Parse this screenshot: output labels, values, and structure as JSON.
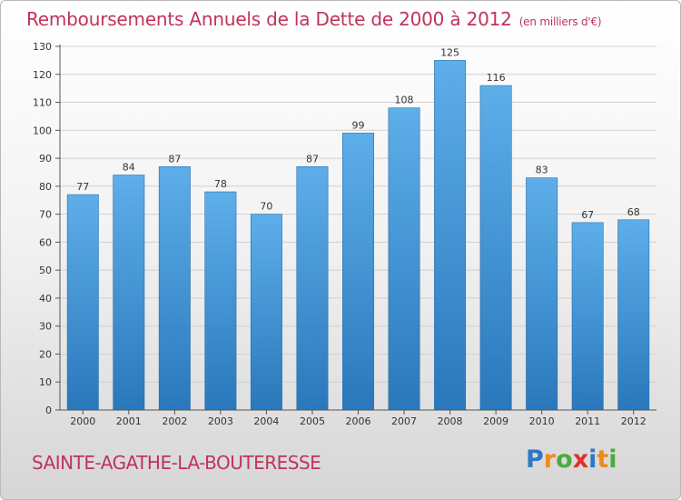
{
  "title": "Remboursements Annuels de la Dette de 2000 à 2012",
  "unit": "(en milliers d'€)",
  "commune": "SAINTE-AGATHE-LA-BOUTERESSE",
  "logo": {
    "text": "Proxiti",
    "letters": [
      {
        "ch": "P",
        "color": "#2f78c4"
      },
      {
        "ch": "r",
        "color": "#f08a1c"
      },
      {
        "ch": "o",
        "color": "#4bab3c"
      },
      {
        "ch": "x",
        "color": "#e0302e"
      },
      {
        "ch": "i",
        "color": "#2f78c4"
      },
      {
        "ch": "t",
        "color": "#f08a1c"
      },
      {
        "ch": "i",
        "color": "#4bab3c"
      }
    ]
  },
  "colors": {
    "title": "#c0345a",
    "bar_top": "#5eaeea",
    "bar_bottom": "#2a78bb",
    "grid": "#d0d0d0",
    "axis": "#555555"
  },
  "chart_data": {
    "type": "bar",
    "categories": [
      "2000",
      "2001",
      "2002",
      "2003",
      "2004",
      "2005",
      "2006",
      "2007",
      "2008",
      "2009",
      "2010",
      "2011",
      "2012"
    ],
    "values": [
      77,
      84,
      87,
      78,
      70,
      87,
      99,
      108,
      125,
      116,
      83,
      67,
      68
    ],
    "ylim": [
      0,
      130
    ],
    "yticks": [
      0,
      10,
      20,
      30,
      40,
      50,
      60,
      70,
      80,
      90,
      100,
      110,
      120,
      130
    ],
    "grid": true,
    "xlabel": "",
    "ylabel": ""
  }
}
